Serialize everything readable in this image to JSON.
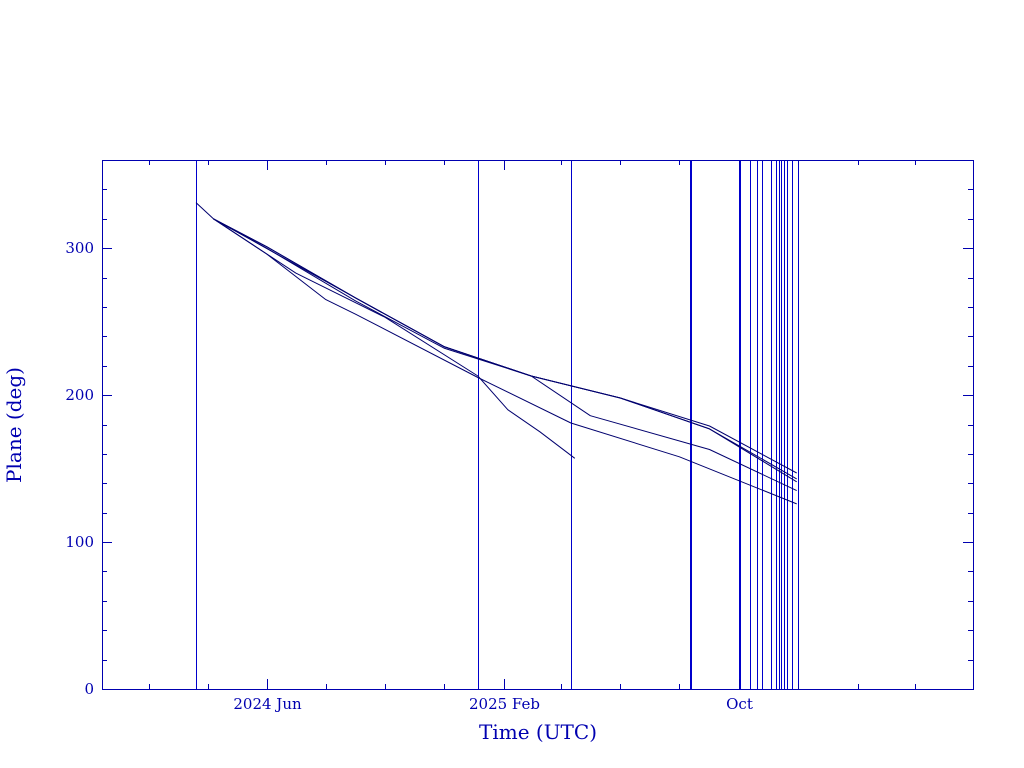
{
  "chart_data": {
    "type": "line",
    "title": "",
    "xlabel": "Time (UTC)",
    "ylabel": "Plane (deg)",
    "x_axis_type": "date",
    "xlim": [
      "2023-12-14",
      "2026-05-31"
    ],
    "ylim": [
      0,
      360
    ],
    "y_major_ticks": [
      0,
      100,
      200,
      300
    ],
    "y_minor_step": 20,
    "x_tick_labels": [
      {
        "date": "2024-06-01",
        "label": "2024 Jun"
      },
      {
        "date": "2025-02-01",
        "label": "2025 Feb"
      },
      {
        "date": "2025-10-01",
        "label": "Oct"
      }
    ],
    "x_minor_ticks": [
      "2024-02-01",
      "2024-04-01",
      "2024-08-01",
      "2024-10-01",
      "2024-12-01",
      "2025-04-01",
      "2025-06-01",
      "2025-08-01",
      "2025-12-01",
      "2026-02-01",
      "2026-04-01"
    ],
    "grid": false,
    "legend": "none",
    "colors": {
      "axes": "#0000b0",
      "series": "#00006e",
      "vertical_lines": "#0000cc"
    },
    "vertical_lines": [
      "2024-03-20",
      "2025-01-05",
      "2025-04-11",
      "2025-08-12",
      "2025-08-13",
      "2025-10-01",
      "2025-10-02",
      "2025-10-13",
      "2025-10-20",
      "2025-10-25",
      "2025-11-03",
      "2025-11-09",
      "2025-11-12",
      "2025-11-14",
      "2025-11-17",
      "2025-11-20",
      "2025-11-25",
      "2025-12-01"
    ],
    "series": [
      {
        "x": [
          "2024-03-20",
          "2024-04-07",
          "2024-06-01",
          "2024-09-01",
          "2024-12-01",
          "2025-03-01",
          "2025-06-01",
          "2025-09-01",
          "2025-11-30"
        ],
        "y": [
          331,
          320,
          301,
          266,
          233,
          213,
          198,
          179,
          147
        ]
      },
      {
        "x": [
          "2024-04-07",
          "2024-06-01",
          "2024-09-01",
          "2024-12-01",
          "2025-03-01",
          "2025-06-01",
          "2025-09-01",
          "2025-11-30"
        ],
        "y": [
          320,
          301,
          266,
          233,
          213,
          198,
          177,
          143
        ]
      },
      {
        "x": [
          "2024-04-07",
          "2024-06-01",
          "2024-09-01",
          "2024-12-01",
          "2025-03-01",
          "2025-06-01",
          "2025-09-01",
          "2025-11-30"
        ],
        "y": [
          320,
          300,
          264,
          232,
          213,
          198,
          177,
          141
        ]
      },
      {
        "x": [
          "2024-04-07",
          "2024-07-01",
          "2024-10-01",
          "2025-01-05",
          "2025-02-05",
          "2025-03-10",
          "2025-04-15"
        ],
        "y": [
          320,
          283,
          253,
          213,
          190,
          175,
          157
        ]
      },
      {
        "x": [
          "2024-04-07",
          "2024-06-01",
          "2024-08-01",
          "2024-09-01",
          "2025-01-05",
          "2025-04-11",
          "2025-08-01",
          "2025-11-30"
        ],
        "y": [
          320,
          296,
          265,
          255,
          212,
          181,
          158,
          126
        ]
      },
      {
        "x": [
          "2024-04-07",
          "2024-09-01",
          "2024-12-01",
          "2025-03-01",
          "2025-05-01",
          "2025-09-01",
          "2025-11-30"
        ],
        "y": [
          320,
          266,
          233,
          213,
          186,
          163,
          135
        ]
      }
    ]
  }
}
